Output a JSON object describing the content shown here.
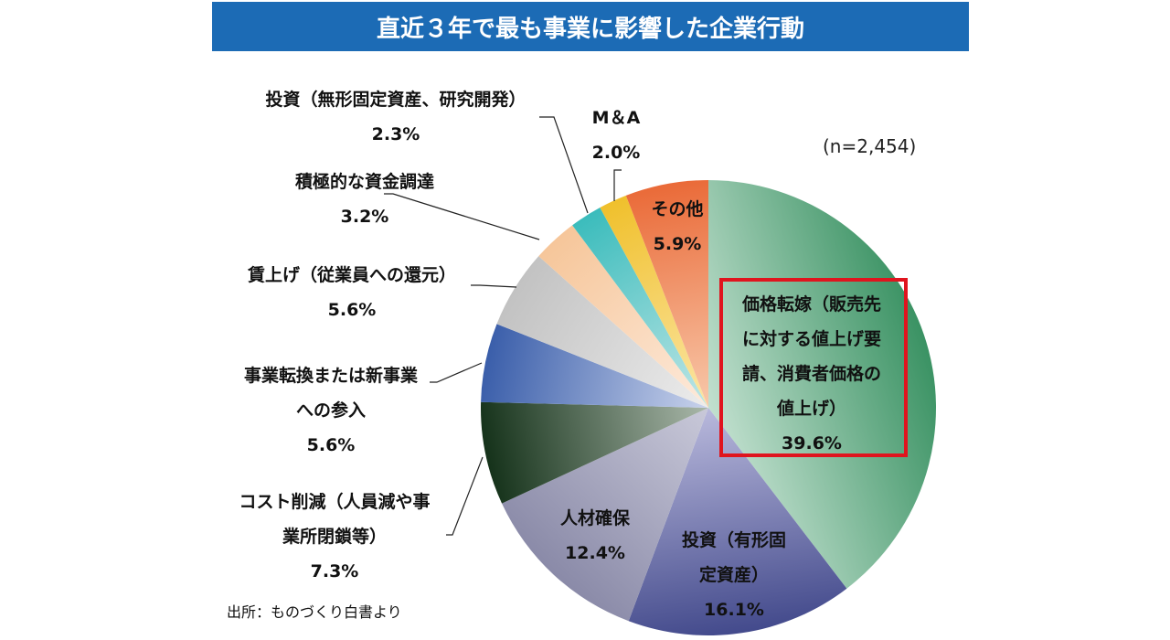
{
  "chart_data": {
    "type": "pie",
    "title": "直近３年で最も事業に影響した企業行動",
    "note": "(n=2,454)",
    "source": "出所：ものづくり白書より",
    "highlighted": "価格転嫁（販売先に対する値上げ要請、消費者価格の値上げ）",
    "slices": [
      {
        "label": "価格転嫁（販売先に対する値上げ要請、消費者価格の値上げ）",
        "lines": [
          "価格転嫁（販売先",
          "に対する値上げ要",
          "請、消費者価格の",
          "値上げ）"
        ],
        "value": 39.6,
        "pct": "39.6%",
        "dark": "#3a9263",
        "light": "#c2e0cf"
      },
      {
        "label": "投資（有形固定資産）",
        "lines": [
          "投資（有形固",
          "定資産）"
        ],
        "value": 16.1,
        "pct": "16.1%",
        "dark": "#434a8c",
        "light": "#b9b9dc"
      },
      {
        "label": "人材確保",
        "lines": [
          "人材確保"
        ],
        "value": 12.4,
        "pct": "12.4%",
        "dark": "#8a8aa8",
        "light": "#c9c9d9"
      },
      {
        "label": "コスト削減（人員減や事業所閉鎖等）",
        "lines": [
          "コスト削減（人員減や事",
          "業所閉鎖等）"
        ],
        "value": 7.3,
        "pct": "7.3%",
        "dark": "#15321a",
        "light": "#aab8aa"
      },
      {
        "label": "事業転換または新事業への参入",
        "lines": [
          "事業転換または新事業",
          "への参入"
        ],
        "value": 5.6,
        "pct": "5.6%",
        "dark": "#3a5eaa",
        "light": "#c9d3ec"
      },
      {
        "label": "賃上げ（従業員への還元）",
        "lines": [
          "賃上げ（従業員への還元）"
        ],
        "value": 5.6,
        "pct": "5.6%",
        "dark": "#c2c2c2",
        "light": "#ececec"
      },
      {
        "label": "積極的な資金調達",
        "lines": [
          "積極的な資金調達"
        ],
        "value": 3.2,
        "pct": "3.2%",
        "dark": "#f6c69a",
        "light": "#fdeadb"
      },
      {
        "label": "投資（無形固定資産、研究開発）",
        "lines": [
          "投資（無形固定資産、研究開発）"
        ],
        "value": 2.3,
        "pct": "2.3%",
        "dark": "#3bbcbc",
        "light": "#bfe6e6"
      },
      {
        "label": "M＆A",
        "lines": [
          "M＆A"
        ],
        "value": 2.0,
        "pct": "2.0%",
        "dark": "#f0c02c",
        "light": "#fbe6a6"
      },
      {
        "label": "その他",
        "lines": [
          "その他"
        ],
        "value": 5.9,
        "pct": "5.9%",
        "dark": "#ea6a38",
        "light": "#f8c9ab"
      }
    ]
  }
}
